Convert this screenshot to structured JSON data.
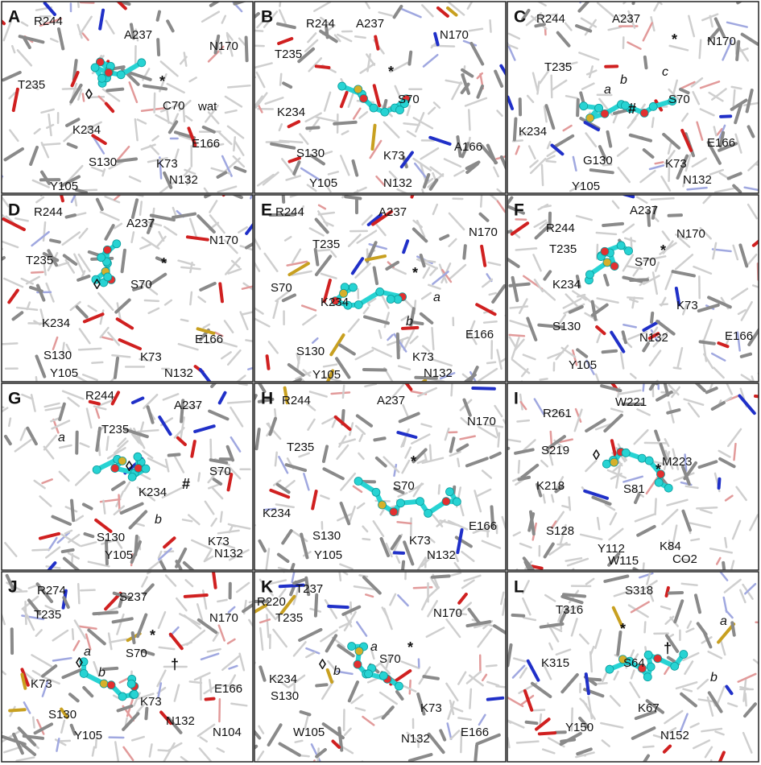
{
  "panels": [
    {
      "letter": "A",
      "labels": [
        "R244",
        "A237",
        "N170",
        "T235",
        "*",
        "C70",
        "wat",
        "◊",
        "K234",
        "E166",
        "S130",
        "K73",
        "N132",
        "Y105"
      ]
    },
    {
      "letter": "B",
      "labels": [
        "R244",
        "A237",
        "N170",
        "T235",
        "*",
        "S70",
        "K234",
        "S130",
        "K73",
        "A166",
        "Y105",
        "N132"
      ]
    },
    {
      "letter": "C",
      "labels": [
        "R244",
        "A237",
        "N170",
        "T235",
        "*",
        "b",
        "c",
        "a",
        "S70",
        "#",
        "K234",
        "E166",
        "G130",
        "K73",
        "N132",
        "Y105"
      ]
    },
    {
      "letter": "D",
      "labels": [
        "R244",
        "A237",
        "N170",
        "T235",
        "*",
        "◊",
        "S70",
        "K234",
        "E166",
        "S130",
        "K73",
        "Y105",
        "N132"
      ]
    },
    {
      "letter": "E",
      "labels": [
        "R244",
        "A237",
        "N170",
        "T235",
        "*",
        "S70",
        "K234",
        "a",
        "b",
        "E166",
        "S130",
        "K73",
        "Y105",
        "N132"
      ]
    },
    {
      "letter": "F",
      "labels": [
        "A237",
        "R244",
        "N170",
        "T235",
        "*",
        "S70",
        "K234",
        "K73",
        "S130",
        "N132",
        "E166",
        "Y105"
      ]
    },
    {
      "letter": "G",
      "labels": [
        "R244",
        "A237",
        "T235",
        "a",
        "◊",
        "S70",
        "#",
        "K234",
        "b",
        "S130",
        "K73",
        "Y105",
        "N132"
      ]
    },
    {
      "letter": "H",
      "labels": [
        "R244",
        "A237",
        "N170",
        "T235",
        "*",
        "S70",
        "K234",
        "E166",
        "S130",
        "K73",
        "Y105",
        "N132"
      ]
    },
    {
      "letter": "I",
      "labels": [
        "R261",
        "W221",
        "S219",
        "M223",
        "◊",
        "*",
        "K218",
        "S81",
        "S128",
        "Y112",
        "K84",
        "W115",
        "CO2"
      ]
    },
    {
      "letter": "J",
      "labels": [
        "R274",
        "S237",
        "N170",
        "T235",
        "*",
        "S70",
        "a",
        "◊",
        "b",
        "†",
        "K73",
        "E166",
        "S130",
        "K73",
        "N132",
        "N104",
        "Y105"
      ]
    },
    {
      "letter": "K",
      "labels": [
        "R220",
        "T237",
        "N170",
        "T235",
        "*",
        "a",
        "S70",
        "◊",
        "b",
        "K234",
        "S130",
        "K73",
        "W105",
        "E166",
        "N132"
      ]
    },
    {
      "letter": "L",
      "labels": [
        "S318",
        "T316",
        "a",
        "*",
        "†",
        "K315",
        "S64",
        "b",
        "K67",
        "Y150",
        "N152"
      ]
    }
  ]
}
